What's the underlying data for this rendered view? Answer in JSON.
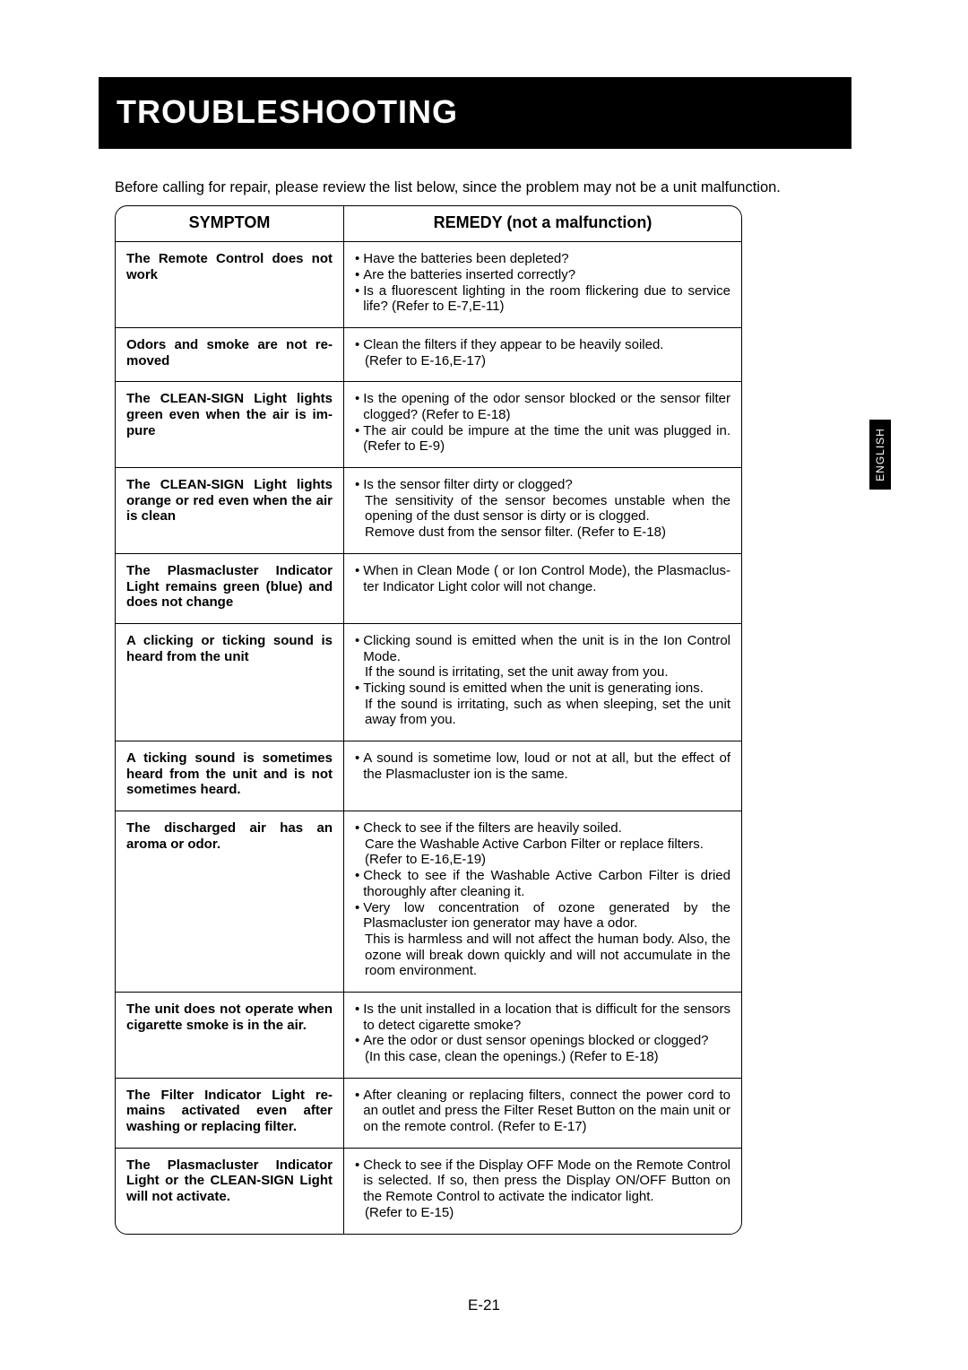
{
  "title": "TROUBLESHOOTING",
  "intro": "Before calling for repair, please review the list below, since the problem may not be a unit malfunction.",
  "headers": {
    "symptom": "SYMPTOM",
    "remedy": "REMEDY (not a malfunction)"
  },
  "sideTab": "ENGLISH",
  "pageNumber": "E-21",
  "rows": [
    {
      "symptom": "The Remote Control does not work",
      "remedy": [
        {
          "bullet": true,
          "text": "Have the batteries been depleted?"
        },
        {
          "bullet": true,
          "text": "Are the batteries inserted correctly?"
        },
        {
          "bullet": true,
          "text": "Is a fluorescent lighting in the room flickering due to service life? (Refer to E-7,E-11)"
        }
      ]
    },
    {
      "symptom": "Odors and smoke are not re­moved",
      "remedy": [
        {
          "bullet": true,
          "text": "Clean the filters if they appear to be heavily soiled."
        },
        {
          "bullet": false,
          "text": "(Refer to E-16,E-17)"
        }
      ]
    },
    {
      "symptom": "The CLEAN-SIGN Light lights green even when the air is im­pure",
      "remedy": [
        {
          "bullet": true,
          "text": "Is the opening of the odor sensor blocked or the sensor filter clogged? (Refer to E-18)"
        },
        {
          "bullet": true,
          "text": "The air could be impure at the time the unit was plugged in. (Refer to E-9)"
        }
      ]
    },
    {
      "symptom": "The CLEAN-SIGN Light lights orange or red even when the air is clean",
      "remedy": [
        {
          "bullet": true,
          "text": "Is the sensor filter dirty or clogged?"
        },
        {
          "bullet": false,
          "text": "The sensitivity of the sensor becomes unstable when the open­ing of the dust sensor is dirty or is clogged."
        },
        {
          "bullet": false,
          "text": "Remove dust from the sensor filter. (Refer to E-18)"
        }
      ]
    },
    {
      "symptom": "The Plasmacluster Indicator Light remains green (blue) and does not change",
      "remedy": [
        {
          "bullet": true,
          "text": "When in Clean Mode ( or Ion Control Mode), the Plasmaclus­ter Indicator Light  color will not change."
        }
      ]
    },
    {
      "symptom": "A clicking or ticking sound is heard from the unit",
      "remedy": [
        {
          "bullet": true,
          "text": "Clicking sound is emitted when the unit is in the Ion Control Mode."
        },
        {
          "bullet": false,
          "text": "If the sound is irritating, set the unit away from you."
        },
        {
          "bullet": true,
          "text": "Ticking sound is emitted when the unit is generating ions."
        },
        {
          "bullet": false,
          "text": "If the sound is irritating, such as when sleeping, set the unit away from you."
        }
      ]
    },
    {
      "symptom": "A ticking sound is sometimes heard from the unit and is not sometimes heard.",
      "remedy": [
        {
          "bullet": true,
          "text": "A sound is sometime low, loud or not at all, but the effect of the Plasmacluster ion is the same."
        }
      ]
    },
    {
      "symptom": "The discharged air has an aroma or odor.",
      "remedy": [
        {
          "bullet": true,
          "text": "Check to see if the filters are heavily soiled."
        },
        {
          "bullet": false,
          "text": "Care the Washable Active Carbon Filter or replace filters."
        },
        {
          "bullet": false,
          "text": "(Refer to E-16,E-19)"
        },
        {
          "bullet": true,
          "text": "Check to see if the Washable Active Carbon Filter is dried thor­oughly after cleaning it."
        },
        {
          "bullet": true,
          "text": "Very low concentration of ozone generated by the Plasmacluster ion   generator may have a odor."
        },
        {
          "bullet": false,
          "text": "This is harmless and will not affect the human body. Also, the ozone will break down quickly and will not accumulate in the room environment."
        }
      ]
    },
    {
      "symptom": "The unit does not operate when cigarette smoke is in the air.",
      "remedy": [
        {
          "bullet": true,
          "text": "Is the unit installed in a location that is difficult for the sensors to detect cigarette smoke?"
        },
        {
          "bullet": true,
          "text": "Are the odor or dust sensor openings blocked or clogged?"
        },
        {
          "bullet": false,
          "text": "(In this case, clean the openings.) (Refer to E-18)"
        }
      ]
    },
    {
      "symptom": "The Filter Indicator Light re­mains activated even after washing or replacing filter.",
      "remedy": [
        {
          "bullet": true,
          "text": "After cleaning or replacing filters, connect the power cord to an outlet and press the Filter Reset Button on the main unit or on the remote control. (Refer to E-17)"
        }
      ]
    },
    {
      "symptom": "The Plasmacluster Indicator Light or the CLEAN-SIGN Light will not activate.",
      "remedy": [
        {
          "bullet": true,
          "text": "Check to see if the Display OFF Mode on the Remote Control is selected. If so, then press the Display ON/OFF Button on the Remote Control to activate the indicator light."
        },
        {
          "bullet": false,
          "text": "(Refer to E-15)"
        }
      ]
    }
  ]
}
